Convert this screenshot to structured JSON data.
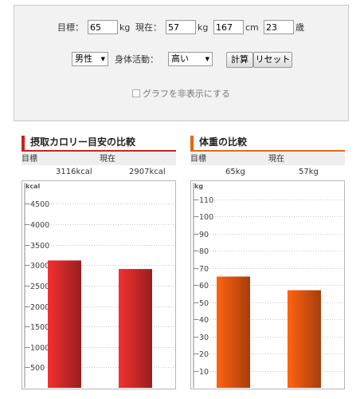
{
  "form": {
    "target_label": "目標：",
    "target_weight": "65",
    "kg_unit": "kg",
    "current_label": "現在：",
    "current_weight": "57",
    "height": "167",
    "cm_unit": "cm",
    "age": "23",
    "age_unit": "歳",
    "gender_value": "男性",
    "activity_label": "身体活動：",
    "activity_value": "高い",
    "calc_button": "計算",
    "reset_button": "リセット",
    "hide_graph_label": "グラフを非表示にする",
    "hide_graph_checked": false
  },
  "calorie": {
    "title": "摂取カロリー目安の比較",
    "accent": "#cc1f1f",
    "col_target": "目標",
    "col_current": "現在",
    "target_value": "3116kcal",
    "current_value": "2907kcal"
  },
  "weight": {
    "title": "体重の比較",
    "accent": "#e8650f",
    "col_target": "目標",
    "col_current": "現在",
    "target_value": "65kg",
    "current_value": "57kg"
  },
  "chart_data": [
    {
      "type": "bar",
      "categories": [
        "目標",
        "現在"
      ],
      "values": [
        3116,
        2907
      ],
      "ylabel": "kcal",
      "ylim": [
        0,
        4900
      ],
      "yticks": [
        500,
        1000,
        1500,
        2000,
        2500,
        3000,
        3500,
        4000,
        4500
      ],
      "grid": true,
      "bar_color": "#d42a2a"
    },
    {
      "type": "bar",
      "categories": [
        "目標",
        "現在"
      ],
      "values": [
        65,
        57
      ],
      "ylabel": "kg",
      "ylim": [
        0,
        117
      ],
      "yticks": [
        10,
        20,
        30,
        40,
        50,
        60,
        70,
        80,
        90,
        100,
        110
      ],
      "grid": true,
      "bar_color": "#e8560f"
    }
  ]
}
